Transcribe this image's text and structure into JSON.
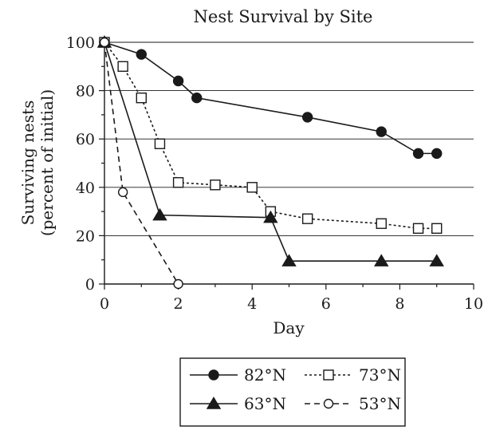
{
  "chart_data": {
    "type": "line",
    "title": "Nest Survival by Site",
    "xlabel": "Day",
    "ylabel_lines": [
      "Surviving nests",
      "(percent of initial)"
    ],
    "xlim": [
      0,
      10
    ],
    "ylim": [
      0,
      100
    ],
    "x_ticks": [
      0,
      2,
      4,
      6,
      8,
      10
    ],
    "y_ticks": [
      0,
      20,
      40,
      60,
      80,
      100
    ],
    "grid": "horizontal",
    "legend_position": "bottom",
    "series": [
      {
        "name": "82°N",
        "marker": "filled-circle",
        "line": "solid",
        "x": [
          0,
          1,
          2,
          2.5,
          5.5,
          7.5,
          8.5,
          9
        ],
        "y": [
          100,
          95,
          84,
          77,
          69,
          63,
          54,
          54
        ]
      },
      {
        "name": "73°N",
        "marker": "open-square",
        "line": "dotted",
        "x": [
          0,
          0.5,
          1,
          1.5,
          2,
          3,
          4,
          4.5,
          5.5,
          7.5,
          8.5,
          9
        ],
        "y": [
          100,
          90,
          77,
          58,
          42,
          41,
          40,
          30,
          27,
          25,
          23,
          23
        ]
      },
      {
        "name": "63°N",
        "marker": "filled-triangle",
        "line": "solid",
        "x": [
          0,
          1.5,
          4.5,
          5,
          7.5,
          9
        ],
        "y": [
          100,
          28.5,
          27.5,
          9.5,
          9.5,
          9.5
        ]
      },
      {
        "name": "53°N",
        "marker": "open-circle",
        "line": "dashed",
        "x": [
          0,
          0.5,
          2
        ],
        "y": [
          100,
          38,
          0
        ]
      }
    ]
  }
}
